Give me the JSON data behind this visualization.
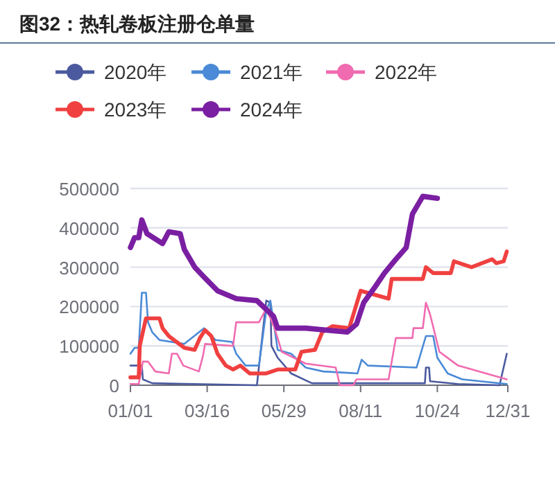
{
  "chart_data": {
    "type": "line",
    "title": "图32：热轧卷板注册仓单量",
    "xlim": [
      "--01-01",
      "--12-31"
    ],
    "xticks": [
      {
        "value": "--01-01",
        "label": "01/01"
      },
      {
        "value": "--03-16",
        "label": "03/16"
      },
      {
        "value": "--05-29",
        "label": "05/29"
      },
      {
        "value": "--08-11",
        "label": "08/11"
      },
      {
        "value": "--10-24",
        "label": "10/24"
      },
      {
        "value": "--12-31",
        "label": "12/31"
      }
    ],
    "ylim": [
      0,
      500000
    ],
    "yticks": [
      0,
      100000,
      200000,
      300000,
      400000,
      500000
    ],
    "grid": "y",
    "legend": "top",
    "marker": "none",
    "line_style": "solid",
    "series": [
      {
        "name": "2020年",
        "color": "#4b5a9e",
        "x": [
          "--01-01",
          "--01-12",
          "--01-13",
          "--01-22",
          "--05-03",
          "--05-12",
          "--05-16",
          "--05-17",
          "--05-23",
          "--06-05",
          "--06-25",
          "--07-29",
          "--10-12",
          "--10-13",
          "--10-16",
          "--10-17",
          "--11-13",
          "--12-23",
          "--12-30"
        ],
        "values": [
          50000,
          50000,
          15000,
          5000,
          0,
          215000,
          210000,
          100000,
          70000,
          30000,
          5000,
          5000,
          5000,
          45000,
          45000,
          10000,
          3000,
          0,
          80000
        ]
      },
      {
        "name": "2021年",
        "color": "#4a8ad6",
        "x": [
          "--01-01",
          "--01-05",
          "--01-09",
          "--01-12",
          "--01-16",
          "--01-18",
          "--01-22",
          "--01-29",
          "--02-22",
          "--03-13",
          "--03-24",
          "--04-09",
          "--04-13",
          "--04-22",
          "--05-05",
          "--05-12",
          "--05-16",
          "--05-23",
          "--06-05",
          "--06-19",
          "--07-06",
          "--08-08",
          "--08-12",
          "--08-18",
          "--10-04",
          "--10-13",
          "--10-20",
          "--10-24",
          "--11-03",
          "--11-17",
          "--12-30"
        ],
        "values": [
          80000,
          95000,
          95000,
          235000,
          235000,
          160000,
          135000,
          115000,
          105000,
          145000,
          115000,
          110000,
          80000,
          50000,
          50000,
          190000,
          215000,
          90000,
          80000,
          45000,
          35000,
          30000,
          65000,
          50000,
          45000,
          125000,
          125000,
          70000,
          30000,
          15000,
          3000
        ]
      },
      {
        "name": "2022年",
        "color": "#f06bb0",
        "x": [
          "--01-01",
          "--01-09",
          "--01-13",
          "--01-18",
          "--01-25",
          "--02-07",
          "--02-10",
          "--02-15",
          "--02-21",
          "--03-08",
          "--03-12",
          "--03-14",
          "--04-10",
          "--04-13",
          "--05-05",
          "--05-12",
          "--05-20",
          "--05-27",
          "--06-19",
          "--07-18",
          "--07-22",
          "--08-04",
          "--08-07",
          "--09-07",
          "--09-14",
          "--09-30",
          "--10-01",
          "--10-10",
          "--10-13",
          "--10-17",
          "--10-26",
          "--11-13",
          "--12-30"
        ],
        "values": [
          3000,
          3000,
          60000,
          60000,
          35000,
          30000,
          80000,
          80000,
          50000,
          35000,
          75000,
          105000,
          100000,
          160000,
          160000,
          195000,
          145000,
          85000,
          55000,
          45000,
          0,
          0,
          15000,
          15000,
          120000,
          120000,
          145000,
          145000,
          210000,
          180000,
          85000,
          50000,
          15000
        ]
      },
      {
        "name": "2023年",
        "color": "#f04040",
        "x": [
          "--01-01",
          "--01-09",
          "--01-10",
          "--01-16",
          "--01-29",
          "--02-01",
          "--02-07",
          "--02-22",
          "--03-04",
          "--03-09",
          "--03-14",
          "--03-20",
          "--03-26",
          "--04-03",
          "--04-10",
          "--04-17",
          "--04-26",
          "--05-12",
          "--05-23",
          "--06-09",
          "--06-15",
          "--06-28",
          "--07-05",
          "--07-15",
          "--07-31",
          "--08-11",
          "--09-07",
          "--09-10",
          "--10-10",
          "--10-13",
          "--10-20",
          "--11-06",
          "--11-09",
          "--11-26",
          "--12-16",
          "--12-20",
          "--12-27",
          "--12-30"
        ],
        "values": [
          20000,
          20000,
          100000,
          170000,
          170000,
          145000,
          125000,
          95000,
          90000,
          120000,
          140000,
          125000,
          80000,
          50000,
          40000,
          50000,
          30000,
          30000,
          40000,
          40000,
          85000,
          90000,
          135000,
          150000,
          145000,
          240000,
          220000,
          270000,
          270000,
          300000,
          285000,
          285000,
          315000,
          300000,
          320000,
          310000,
          315000,
          340000
        ]
      },
      {
        "name": "2024年",
        "color": "#7b1fa2",
        "x": [
          "--01-01",
          "--01-05",
          "--01-09",
          "--01-12",
          "--01-17",
          "--02-01",
          "--02-07",
          "--02-18",
          "--02-22",
          "--03-04",
          "--03-13",
          "--03-26",
          "--04-13",
          "--05-03",
          "--05-19",
          "--05-23",
          "--06-19",
          "--07-29",
          "--08-07",
          "--08-14",
          "--08-25",
          "--09-03",
          "--09-14",
          "--09-24",
          "--09-30",
          "--10-10",
          "--10-24"
        ],
        "values": [
          350000,
          375000,
          375000,
          420000,
          385000,
          360000,
          390000,
          385000,
          345000,
          300000,
          275000,
          240000,
          220000,
          215000,
          175000,
          145000,
          145000,
          135000,
          155000,
          210000,
          250000,
          285000,
          320000,
          350000,
          435000,
          480000,
          475000
        ]
      }
    ]
  }
}
